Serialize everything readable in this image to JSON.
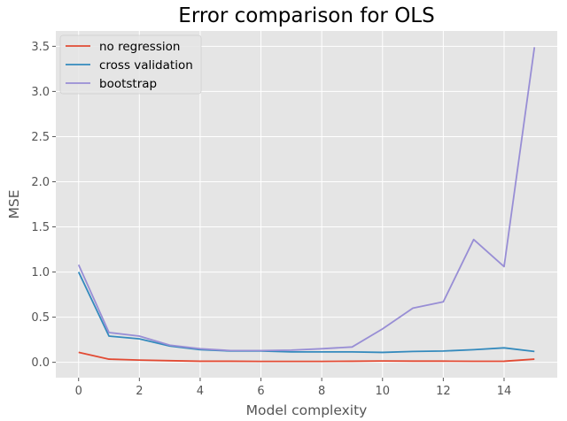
{
  "chart_data": {
    "type": "line",
    "title": "Error comparison for OLS",
    "xlabel": "Model complexity",
    "ylabel": "MSE",
    "xlim": [
      -0.75,
      15.75
    ],
    "ylim": [
      -0.17,
      3.67
    ],
    "xticks": [
      0,
      2,
      4,
      6,
      8,
      10,
      12,
      14
    ],
    "yticks": [
      0.0,
      0.5,
      1.0,
      1.5,
      2.0,
      2.5,
      3.0,
      3.5
    ],
    "ytick_labels": [
      "0.0",
      "0.5",
      "1.0",
      "1.5",
      "2.0",
      "2.5",
      "3.0",
      "3.5"
    ],
    "grid": true,
    "legend_position": "top-left",
    "style": "ggplot",
    "x": [
      0,
      1,
      2,
      3,
      4,
      5,
      6,
      7,
      8,
      9,
      10,
      11,
      12,
      13,
      14,
      15
    ],
    "series": [
      {
        "name": "no regression",
        "color": "#E24A33",
        "values": [
          0.11,
          0.035,
          0.025,
          0.018,
          0.012,
          0.012,
          0.01,
          0.01,
          0.01,
          0.012,
          0.015,
          0.013,
          0.013,
          0.011,
          0.012,
          0.035
        ]
      },
      {
        "name": "cross validation",
        "color": "#348ABD",
        "values": [
          1.0,
          0.29,
          0.26,
          0.18,
          0.14,
          0.125,
          0.125,
          0.115,
          0.115,
          0.115,
          0.11,
          0.12,
          0.125,
          0.14,
          0.16,
          0.12
        ]
      },
      {
        "name": "bootstrap",
        "color": "#988ED5",
        "values": [
          1.08,
          0.33,
          0.29,
          0.19,
          0.15,
          0.13,
          0.13,
          0.135,
          0.15,
          0.17,
          0.37,
          0.6,
          0.67,
          1.36,
          1.06,
          3.49
        ]
      }
    ]
  }
}
